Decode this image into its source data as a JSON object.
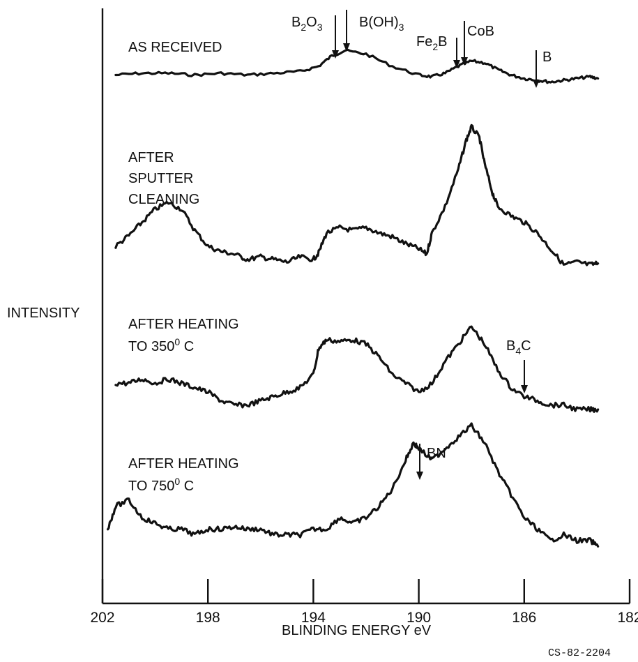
{
  "chart_data": {
    "type": "line",
    "xlabel": "BLINDING ENERGY eV",
    "ylabel": "INTENSITY",
    "x_ticks": [
      202,
      198,
      194,
      190,
      186,
      182
    ],
    "xlim": [
      202,
      182
    ],
    "grid": false,
    "series": [
      {
        "name": "AS RECEIVED",
        "x": [
          201.5,
          200.5,
          199.5,
          198.5,
          197.5,
          196.5,
          195.5,
          194.5,
          193.8,
          193.3,
          192.8,
          192.0,
          191.0,
          190.0,
          189.5,
          189.0,
          188.5,
          188.0,
          187.5,
          187.0,
          186.5,
          186.0,
          185.5,
          185.0,
          184.5,
          184.0,
          183.5,
          183.2
        ],
        "y": [
          0.25,
          0.3,
          0.3,
          0.25,
          0.3,
          0.25,
          0.3,
          0.35,
          0.5,
          0.8,
          0.95,
          0.85,
          0.5,
          0.25,
          0.2,
          0.3,
          0.5,
          0.65,
          0.6,
          0.4,
          0.25,
          0.15,
          0.1,
          0.05,
          0.1,
          0.15,
          0.2,
          0.15
        ]
      },
      {
        "name": "AFTER SPUTTER CLEANING",
        "x": [
          201.5,
          201.0,
          200.5,
          200.0,
          199.5,
          199.0,
          198.5,
          198.0,
          197.5,
          197.0,
          196.5,
          196.0,
          195.5,
          195.0,
          194.5,
          194.0,
          193.8,
          193.5,
          193.0,
          192.5,
          192.0,
          191.5,
          191.0,
          190.5,
          190.0,
          189.7,
          189.5,
          189.0,
          188.5,
          188.2,
          188.0,
          187.7,
          187.5,
          187.2,
          187.0,
          186.5,
          186.0,
          185.5,
          185.0,
          184.5,
          184.0,
          183.5,
          183.2
        ],
        "y": [
          0.1,
          0.18,
          0.28,
          0.38,
          0.43,
          0.38,
          0.22,
          0.1,
          0.06,
          0.04,
          0.0,
          0.02,
          0.0,
          -0.02,
          0.02,
          0.0,
          0.05,
          0.2,
          0.24,
          0.22,
          0.24,
          0.2,
          0.17,
          0.12,
          0.08,
          0.04,
          0.2,
          0.4,
          0.68,
          0.9,
          1.0,
          0.92,
          0.72,
          0.5,
          0.4,
          0.33,
          0.28,
          0.2,
          0.08,
          -0.04,
          -0.02,
          -0.04,
          -0.03
        ]
      },
      {
        "name": "AFTER HEATING TO 350° C",
        "x": [
          201.5,
          201.0,
          200.5,
          200.0,
          199.5,
          199.0,
          198.5,
          198.0,
          197.5,
          197.0,
          196.5,
          196.0,
          195.5,
          195.0,
          194.5,
          194.0,
          193.8,
          193.5,
          193.0,
          192.5,
          192.0,
          191.5,
          191.0,
          190.5,
          190.0,
          189.5,
          189.0,
          188.5,
          188.0,
          187.5,
          187.0,
          186.5,
          186.0,
          185.5,
          185.0,
          184.5,
          184.0,
          183.5,
          183.2
        ],
        "y": [
          0.3,
          0.3,
          0.35,
          0.3,
          0.35,
          0.3,
          0.25,
          0.2,
          0.1,
          0.05,
          0.05,
          0.1,
          0.15,
          0.2,
          0.25,
          0.4,
          0.7,
          0.8,
          0.78,
          0.8,
          0.75,
          0.6,
          0.4,
          0.3,
          0.2,
          0.3,
          0.55,
          0.75,
          0.95,
          0.75,
          0.45,
          0.25,
          0.15,
          0.1,
          0.05,
          0.05,
          0.0,
          0.0,
          0.0
        ]
      },
      {
        "name": "AFTER HEATING TO 750° C",
        "x": [
          201.8,
          201.5,
          201.0,
          200.5,
          200.0,
          199.5,
          199.0,
          198.5,
          198.0,
          197.5,
          197.0,
          196.5,
          196.0,
          195.5,
          195.0,
          194.5,
          194.0,
          193.5,
          193.0,
          192.5,
          192.0,
          191.5,
          191.0,
          190.5,
          190.2,
          190.0,
          189.5,
          189.0,
          188.5,
          188.0,
          187.5,
          187.0,
          186.5,
          186.0,
          185.5,
          185.0,
          184.5,
          184.0,
          183.5,
          183.2
        ],
        "y": [
          0.1,
          0.3,
          0.35,
          0.2,
          0.15,
          0.1,
          0.1,
          0.05,
          0.1,
          0.1,
          0.12,
          0.1,
          0.1,
          0.05,
          0.05,
          0.05,
          0.1,
          0.1,
          0.2,
          0.15,
          0.2,
          0.3,
          0.45,
          0.7,
          0.85,
          0.8,
          0.7,
          0.8,
          0.9,
          1.0,
          0.85,
          0.6,
          0.4,
          0.2,
          0.1,
          0.0,
          0.05,
          0.0,
          0.0,
          -0.05
        ]
      }
    ],
    "annotations": [
      {
        "text": "B2O3",
        "energy": 193.2
      },
      {
        "text": "B(OH)3",
        "energy": 192.8
      },
      {
        "text": "Fe2B",
        "energy": 188.3
      },
      {
        "text": "CoB",
        "energy": 188.0
      },
      {
        "text": "B",
        "energy": 185.2
      },
      {
        "text": "B4C",
        "energy": 185.9
      },
      {
        "text": "BN",
        "energy": 189.7
      }
    ]
  },
  "labels": {
    "ylabel": "INTENSITY",
    "xlabel": "BLINDING ENERGY eV",
    "as_received": "AS RECEIVED",
    "sputter_1": "AFTER",
    "sputter_2": "SPUTTER",
    "sputter_3": "CLEANING",
    "heat350_1": "AFTER HEATING",
    "heat350_2": "TO 350",
    "heat750_1": "AFTER HEATING",
    "heat750_2": "TO 750",
    "deg_sup": "0",
    "celsius": " C",
    "b2o3_b": "B",
    "b2o3_2": "2",
    "b2o3_o": "O",
    "b2o3_3": "3",
    "boh3_main": "B(OH)",
    "boh3_sub": "3",
    "fe2b_fe": "Fe",
    "fe2b_2": "2",
    "fe2b_b": "B",
    "cob": "CoB",
    "b": "B",
    "b4c_b": "B",
    "b4c_4": "4",
    "b4c_c": "C",
    "bn": "BN",
    "figure_code": "CS-82-2204"
  }
}
